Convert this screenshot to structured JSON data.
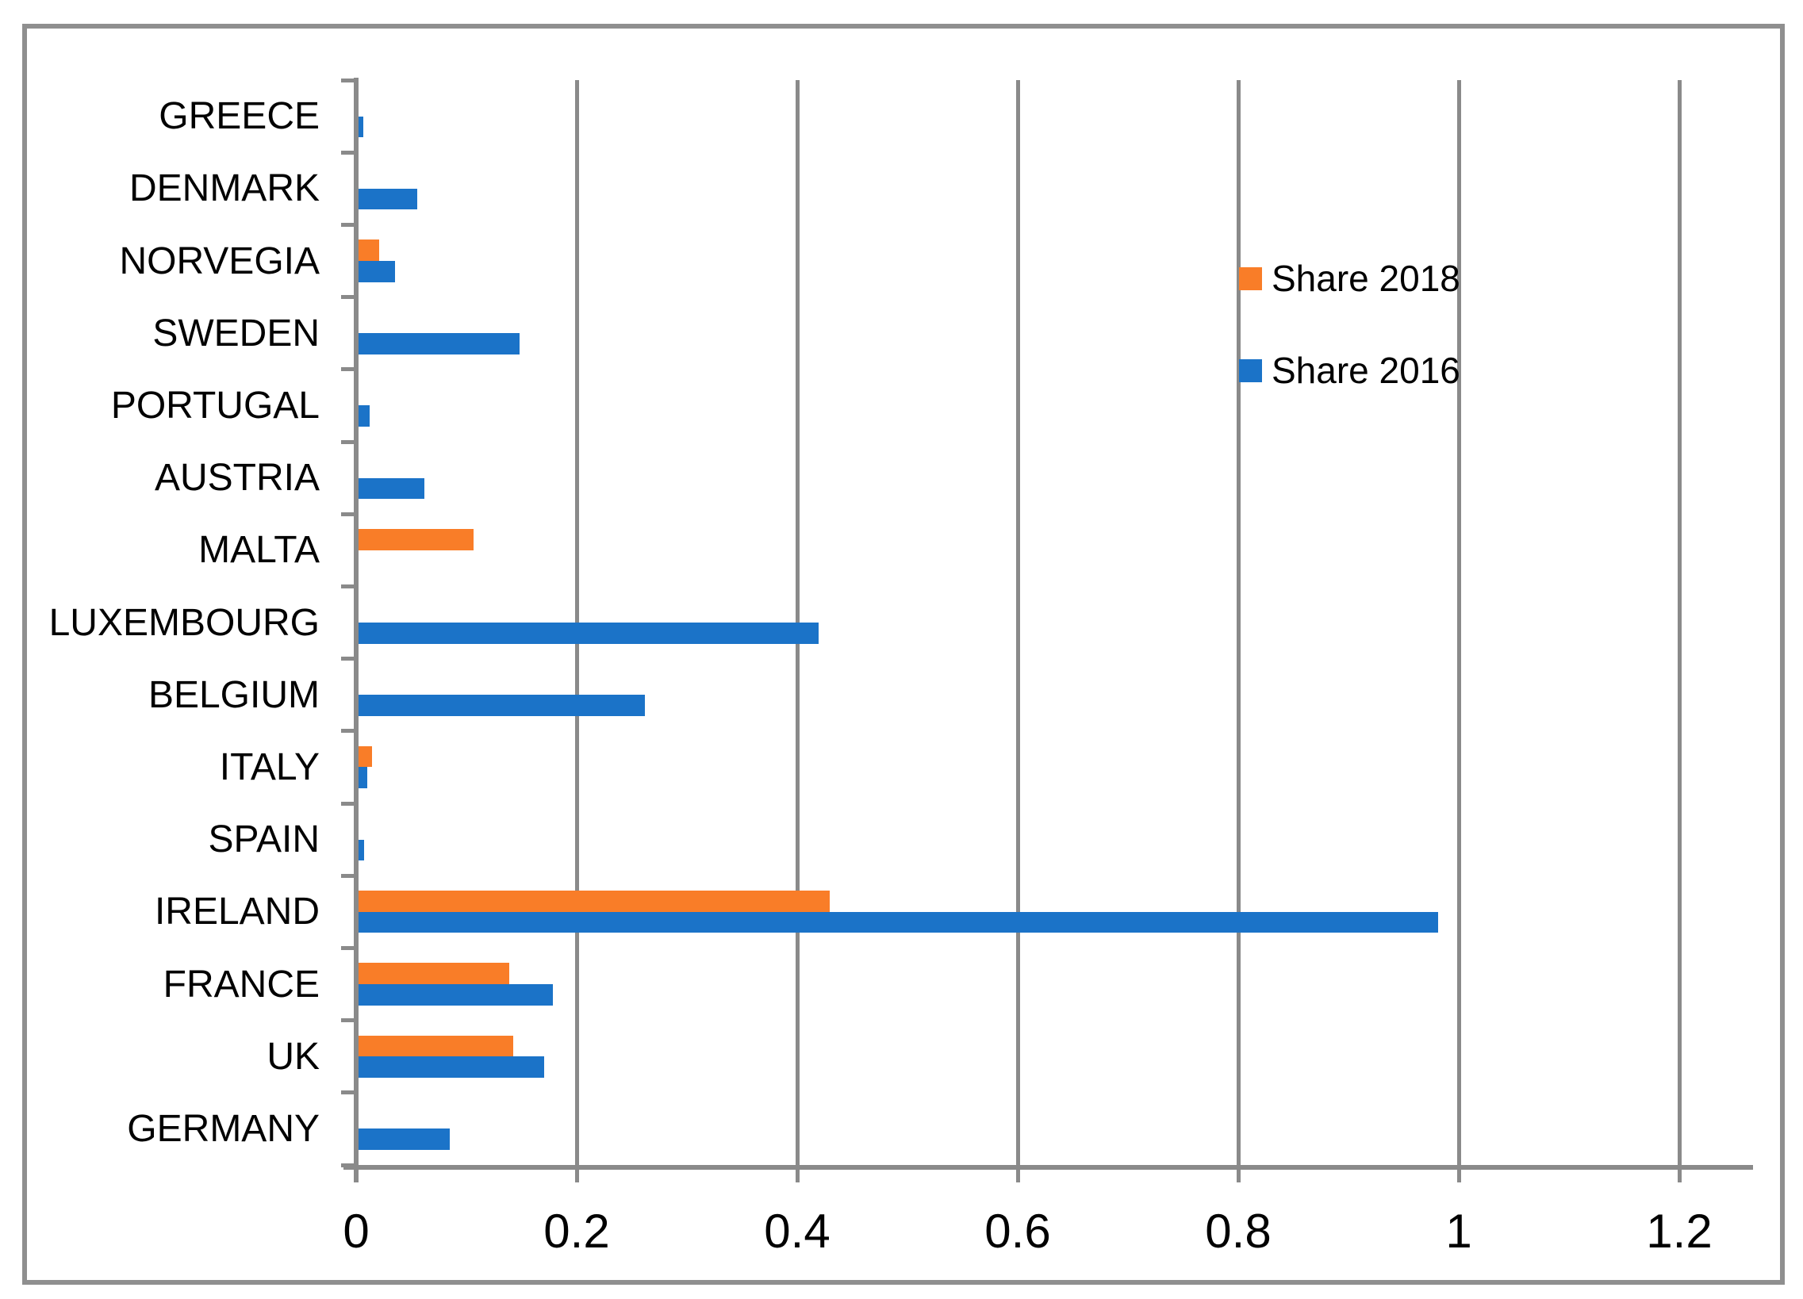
{
  "figure": {
    "background": "#ffffff",
    "border_color": "#8f8f8f",
    "axis_color": "#8a8a8a",
    "gridline_color": "#8a8a8a"
  },
  "chart_data": {
    "type": "bar",
    "orientation": "horizontal",
    "title": "",
    "categories": [
      "GREECE",
      "DENMARK",
      "NORVEGIA",
      "SWEDEN",
      "PORTUGAL",
      "AUSTRIA",
      "MALTA",
      "LUXEMBOURG",
      "BELGIUM",
      "ITALY",
      "SPAIN",
      "IRELAND",
      "FRANCE",
      "UK",
      "GERMANY"
    ],
    "series": [
      {
        "name": "Share 2018",
        "color": "#f97d28",
        "values": [
          0,
          0,
          0.019,
          0,
          0,
          0,
          0.104,
          0,
          0,
          0.012,
          0,
          0.427,
          0.137,
          0.14,
          0
        ]
      },
      {
        "name": "Share 2016",
        "color": "#1b73c8",
        "values": [
          0.004,
          0.053,
          0.033,
          0.146,
          0.01,
          0.06,
          0,
          0.417,
          0.26,
          0.008,
          0.005,
          0.979,
          0.176,
          0.168,
          0.083
        ]
      }
    ],
    "x_axis": {
      "min": 0,
      "max": 1.2,
      "tick_values": [
        0,
        0.2,
        0.4,
        0.6,
        0.8,
        1,
        1.2
      ],
      "tick_labels": [
        "0",
        "0.2",
        "0.4",
        "0.6",
        "0.8",
        "1",
        "1.2"
      ]
    },
    "grid": true,
    "legend_position": "middle-right"
  }
}
